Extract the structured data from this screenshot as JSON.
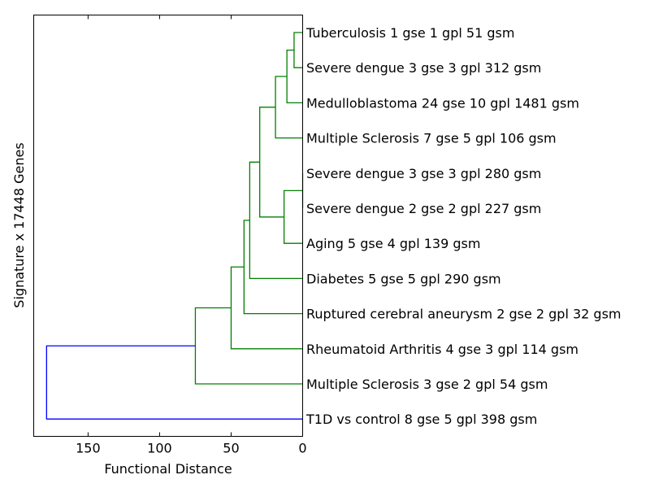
{
  "chart_data": {
    "type": "dendrogram",
    "title": "",
    "xlabel": "Functional Distance",
    "ylabel": "Signature x 17448 Genes",
    "x_axis": {
      "orientation": "reversed",
      "xlim": [
        188,
        0
      ],
      "ticks": [
        150,
        100,
        50,
        0
      ],
      "tick_labels": [
        "150",
        "100",
        "50",
        "0"
      ]
    },
    "grid": false,
    "legend": "none",
    "colors": {
      "cluster": "#008000",
      "root": "#0000ff",
      "axes": "#000000"
    },
    "leaves": [
      "Tuberculosis 1 gse 1 gpl 51 gsm",
      "Severe dengue 3 gse 3 gpl 312 gsm",
      "Medulloblastoma 24 gse 10 gpl 1481 gsm",
      "Multiple Sclerosis 7 gse 5 gpl 106 gsm",
      "Severe dengue 3 gse 3 gpl 280 gsm",
      "Severe dengue 2 gse 2 gpl 227 gsm",
      "Aging 5 gse 4 gpl 139 gsm",
      "Diabetes 5 gse 5 gpl 290 gsm",
      "Ruptured cerebral aneurysm 2 gse 2 gpl 32 gsm",
      "Rheumatoid Arthritis 4 gse 3 gpl 114 gsm",
      "Multiple Sclerosis 3 gse 2 gpl 54 gsm",
      "T1D vs control 8 gse 5 gpl 398 gsm"
    ],
    "merges": [
      {
        "a": 0,
        "b": 1,
        "height": 6,
        "color": "cluster"
      },
      {
        "a": "m0",
        "b": 2,
        "height": 11,
        "color": "cluster"
      },
      {
        "a": "m1",
        "b": 3,
        "height": 19,
        "color": "cluster"
      },
      {
        "a": 4,
        "b": 5,
        "height": 0,
        "color": "cluster"
      },
      {
        "a": "m3",
        "b": 6,
        "height": 13,
        "color": "cluster"
      },
      {
        "a": "m2",
        "b": "m4",
        "height": 30,
        "color": "cluster"
      },
      {
        "a": "m5",
        "b": 7,
        "height": 37,
        "color": "cluster"
      },
      {
        "a": "m6",
        "b": 8,
        "height": 41,
        "color": "cluster"
      },
      {
        "a": "m7",
        "b": 9,
        "height": 50,
        "color": "cluster"
      },
      {
        "a": "m8",
        "b": 10,
        "height": 75,
        "color": "cluster"
      },
      {
        "a": "m9",
        "b": 11,
        "height": 179,
        "color": "root"
      }
    ]
  }
}
